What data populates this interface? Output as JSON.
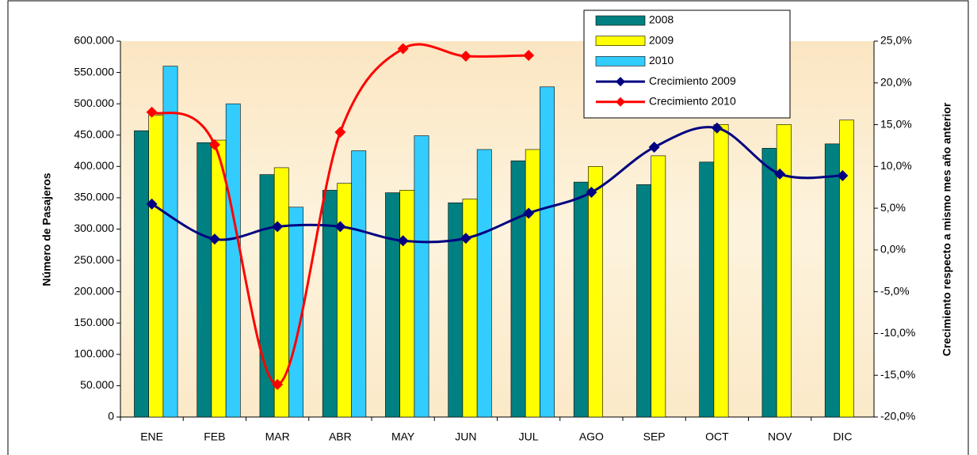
{
  "chart_data": {
    "type": "bar_line",
    "categories": [
      "ENE",
      "FEB",
      "MAR",
      "ABR",
      "MAY",
      "JUN",
      "JUL",
      "AGO",
      "SEP",
      "OCT",
      "NOV",
      "DIC"
    ],
    "ylabel": "Número de Pasajeros",
    "y2label": "Crecimiento respecto a mismo mes año anterior",
    "ylim": [
      0,
      600000
    ],
    "yticks": [
      0,
      {
        "value": 50000,
        "label": "50.000"
      },
      {
        "value": 100000,
        "label": "100.000"
      },
      {
        "value": 150000,
        "label": "150.000"
      },
      {
        "value": 200000,
        "label": "200.000"
      },
      {
        "value": 250000,
        "label": "250.000"
      },
      {
        "value": 300000,
        "label": "300.000"
      },
      {
        "value": 350000,
        "label": "350.000"
      },
      {
        "value": 400000,
        "label": "400.000"
      },
      {
        "value": 450000,
        "label": "450.000"
      },
      {
        "value": 500000,
        "label": "500.000"
      },
      {
        "value": 550000,
        "label": "550.000"
      },
      {
        "value": 600000,
        "label": "600.000"
      }
    ],
    "y2lim": [
      -20,
      25
    ],
    "y2ticks": [
      {
        "value": -20,
        "label": "-20,0%"
      },
      {
        "value": -15,
        "label": "-15,0%"
      },
      {
        "value": -10,
        "label": "-10,0%"
      },
      {
        "value": -5,
        "label": "-5,0%"
      },
      {
        "value": 0,
        "label": "0,0%"
      },
      {
        "value": 5,
        "label": "5,0%"
      },
      {
        "value": 10,
        "label": "10,0%"
      },
      {
        "value": 15,
        "label": "15,0%"
      },
      {
        "value": 20,
        "label": "20,0%"
      },
      {
        "value": 25,
        "label": "25,0%"
      }
    ],
    "grid": false,
    "series": [
      {
        "name": "2008",
        "kind": "bar",
        "color": "#008080",
        "values": [
          457000,
          438000,
          387000,
          362000,
          358000,
          342000,
          409000,
          375000,
          371000,
          407000,
          429000,
          436000
        ]
      },
      {
        "name": "2009",
        "kind": "bar",
        "color": "#ffff00",
        "values": [
          482000,
          442000,
          398000,
          373000,
          362000,
          348000,
          427000,
          400000,
          417000,
          467000,
          467000,
          474000
        ]
      },
      {
        "name": "2010",
        "kind": "bar",
        "color": "#33ccff",
        "values": [
          560000,
          500000,
          335000,
          425000,
          449000,
          427000,
          527000,
          null,
          null,
          null,
          null,
          null
        ]
      },
      {
        "name": "Crecimiento 2009",
        "kind": "line",
        "axis": "y2",
        "color": "#000080",
        "values": [
          5.5,
          1.3,
          2.8,
          2.8,
          1.1,
          1.4,
          4.4,
          6.9,
          12.3,
          14.6,
          9.1,
          8.9
        ]
      },
      {
        "name": "Crecimiento 2010",
        "kind": "line",
        "axis": "y2",
        "color": "#ff0000",
        "values": [
          16.5,
          12.6,
          -16.1,
          14.1,
          24.1,
          23.2,
          23.3,
          null,
          null,
          null,
          null,
          null
        ]
      }
    ]
  }
}
